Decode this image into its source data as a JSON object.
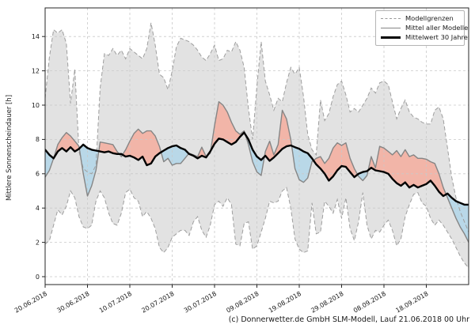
{
  "caption": "(c) Donnerwetter.de GmbH SLM-Modell, Lauf 21.06.2018 00 Uhr",
  "legend": {
    "items": [
      {
        "label": "Modellgrenzen",
        "style": "dashed-gray"
      },
      {
        "label": "Mittel aller Modelle",
        "style": "solid-gray"
      },
      {
        "label": "Mittelwert 30 Jahre",
        "style": "solid-black-thick"
      }
    ],
    "position": "top-right"
  },
  "chart_data": {
    "type": "line",
    "title": "",
    "xlabel": "",
    "ylabel": "Mittlere Sonnenscheindauer [h]",
    "grid": true,
    "x_unit": "day index, day 0 = 20.06.2018, daily steps",
    "ylim": [
      -0.5,
      15.7
    ],
    "yticks": [
      0,
      2,
      4,
      6,
      8,
      10,
      12,
      14
    ],
    "xtick_days": [
      0,
      10,
      20,
      30,
      40,
      50,
      60,
      70,
      80,
      90
    ],
    "xtick_labels": [
      "20.06.2018",
      "30.06.2018",
      "10.07.2018",
      "20.07.2018",
      "30.07.2018",
      "09.08.2018",
      "19.08.2018",
      "29.08.2018",
      "08.09.2018",
      "18.09.2018"
    ],
    "colors": {
      "band": "#e2e2e2",
      "bound_line": "#9e9e9e",
      "mean_line": "#858585",
      "clim_line": "#000000",
      "above_fill": "#f2b5a8",
      "below_fill": "#b9d8e8",
      "grid": "#c9c9c9",
      "spine": "#262626"
    },
    "series": [
      {
        "name": "Modellgrenzen obere Grenze",
        "role": "upper_bound",
        "values": [
          10.4,
          12.8,
          14.4,
          14.2,
          14.4,
          13.6,
          10.1,
          12.1,
          7.3,
          6.3,
          6.1,
          6.0,
          6.5,
          11.0,
          13.0,
          12.9,
          13.3,
          12.9,
          13.2,
          12.7,
          13.3,
          13.1,
          12.9,
          12.7,
          13.3,
          14.8,
          13.5,
          11.8,
          11.6,
          10.9,
          12.0,
          13.4,
          13.9,
          13.8,
          13.7,
          13.5,
          13.2,
          12.8,
          12.6,
          13.0,
          13.5,
          12.6,
          12.7,
          13.2,
          13.1,
          13.7,
          13.2,
          12.2,
          9.8,
          8.0,
          11.1,
          13.7,
          11.4,
          10.6,
          9.7,
          10.4,
          10.2,
          11.3,
          12.2,
          11.8,
          12.2,
          10.5,
          8.3,
          7.4,
          7.1,
          10.3,
          9.1,
          9.5,
          10.5,
          11.2,
          11.4,
          10.6,
          9.6,
          9.8,
          9.6,
          10.0,
          10.4,
          11.0,
          10.7,
          11.3,
          11.4,
          11.2,
          10.2,
          9.2,
          9.8,
          10.3,
          9.6,
          9.3,
          9.2,
          9.0,
          8.9,
          8.9,
          9.7,
          9.9,
          9.2,
          7.5,
          5.8,
          4.6,
          3.8,
          3.2,
          2.6
        ]
      },
      {
        "name": "Modellgrenzen untere Grenze",
        "role": "lower_bound",
        "values": [
          1.9,
          2.1,
          3.0,
          3.9,
          3.6,
          4.1,
          5.0,
          4.6,
          3.5,
          2.9,
          2.8,
          3.0,
          4.4,
          5.0,
          4.6,
          3.7,
          3.1,
          3.0,
          3.7,
          4.9,
          5.1,
          4.6,
          4.4,
          3.5,
          3.8,
          3.4,
          2.8,
          1.7,
          1.4,
          1.7,
          2.3,
          2.5,
          2.7,
          2.7,
          2.4,
          3.2,
          3.5,
          2.7,
          2.3,
          3.0,
          4.2,
          4.4,
          4.1,
          4.6,
          4.2,
          1.9,
          1.8,
          3.1,
          3.2,
          1.6,
          1.8,
          2.6,
          3.4,
          4.4,
          4.3,
          4.4,
          5.0,
          5.2,
          4.0,
          2.2,
          1.6,
          1.4,
          1.5,
          4.3,
          2.5,
          2.6,
          4.4,
          4.1,
          3.7,
          4.5,
          3.4,
          4.6,
          2.8,
          2.1,
          3.2,
          4.9,
          3.0,
          2.2,
          2.7,
          2.6,
          3.0,
          3.3,
          2.7,
          1.8,
          2.2,
          3.5,
          4.2,
          4.8,
          4.9,
          4.3,
          4.1,
          3.4,
          3.0,
          3.3,
          3.0,
          2.6,
          2.2,
          1.7,
          1.2,
          0.8,
          0.5
        ]
      },
      {
        "name": "Mittel aller Modelle",
        "role": "model_mean",
        "values": [
          5.8,
          6.2,
          6.9,
          7.7,
          8.1,
          8.4,
          8.2,
          7.9,
          7.6,
          6.0,
          4.7,
          5.3,
          6.2,
          7.85,
          7.8,
          7.75,
          7.7,
          7.3,
          7.0,
          7.4,
          7.9,
          8.35,
          8.6,
          8.35,
          8.5,
          8.5,
          8.2,
          7.6,
          6.7,
          6.9,
          6.5,
          6.6,
          6.6,
          6.9,
          7.2,
          7.1,
          7.0,
          7.55,
          7.0,
          7.2,
          8.8,
          10.2,
          10.0,
          9.6,
          9.0,
          8.5,
          8.3,
          8.5,
          7.7,
          6.7,
          6.1,
          5.9,
          7.3,
          7.9,
          7.1,
          7.7,
          9.7,
          9.2,
          8.0,
          6.3,
          5.65,
          5.5,
          5.75,
          6.7,
          6.9,
          7.0,
          6.6,
          6.9,
          7.5,
          7.8,
          7.65,
          7.8,
          6.9,
          6.3,
          5.85,
          5.6,
          5.9,
          7.0,
          6.35,
          7.6,
          7.5,
          7.3,
          7.1,
          7.35,
          7.0,
          7.4,
          7.0,
          7.1,
          6.9,
          6.9,
          6.85,
          6.7,
          6.6,
          6.0,
          5.2,
          4.6,
          4.0,
          3.4,
          2.9,
          2.5,
          2.0
        ]
      },
      {
        "name": "Mittelwert 30 Jahre",
        "role": "climate_mean",
        "values": [
          7.4,
          7.1,
          6.9,
          7.3,
          7.5,
          7.3,
          7.55,
          7.3,
          7.45,
          7.7,
          7.5,
          7.4,
          7.35,
          7.3,
          7.25,
          7.3,
          7.2,
          7.15,
          7.15,
          7.0,
          7.05,
          6.95,
          6.8,
          7.0,
          6.5,
          6.6,
          7.0,
          7.2,
          7.35,
          7.5,
          7.6,
          7.65,
          7.5,
          7.4,
          7.15,
          7.05,
          6.9,
          7.05,
          6.95,
          7.3,
          7.75,
          8.05,
          8.0,
          7.85,
          7.7,
          7.85,
          8.15,
          8.4,
          8.0,
          7.4,
          7.0,
          6.8,
          7.05,
          6.75,
          6.95,
          7.2,
          7.45,
          7.6,
          7.65,
          7.55,
          7.45,
          7.3,
          7.2,
          6.9,
          6.55,
          6.3,
          6.0,
          5.6,
          5.85,
          6.2,
          6.45,
          6.4,
          6.1,
          5.8,
          6.0,
          6.1,
          6.15,
          6.35,
          6.2,
          6.15,
          6.1,
          6.0,
          5.7,
          5.45,
          5.3,
          5.5,
          5.2,
          5.35,
          5.2,
          5.3,
          5.4,
          5.6,
          5.3,
          4.95,
          4.7,
          4.85,
          4.6,
          4.4,
          4.3,
          4.2,
          4.2
        ]
      }
    ],
    "fills": [
      {
        "name": "Modellgrenzen-Band",
        "between": [
          "upper_bound",
          "lower_bound"
        ],
        "color": "#e2e2e2"
      },
      {
        "name": "Modellmittel über Klimamittel",
        "between": [
          "model_mean",
          "climate_mean"
        ],
        "where": "model_mean > climate_mean",
        "color": "#f2b5a8"
      },
      {
        "name": "Modellmittel unter Klimamittel",
        "between": [
          "model_mean",
          "climate_mean"
        ],
        "where": "model_mean < climate_mean",
        "color": "#b9d8e8"
      }
    ]
  }
}
